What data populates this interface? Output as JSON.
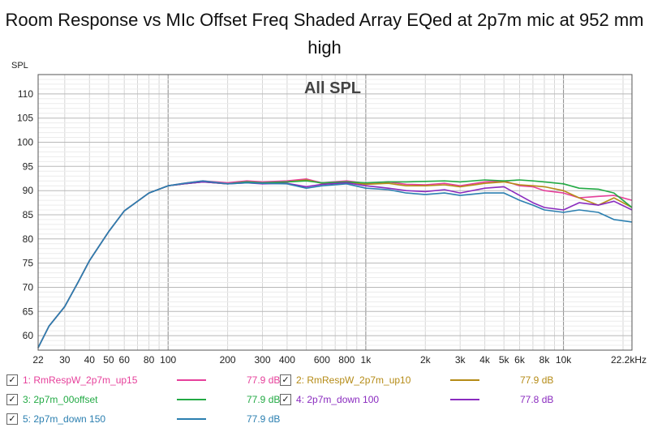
{
  "chart_data": {
    "type": "line",
    "title": "Room Response vs MIc Offset Freq Shaded Array EQed at 2p7m mic at 952 mm high",
    "plot_label": "All SPL",
    "ylabel": "SPL",
    "xscale": "log",
    "xlim": [
      22,
      22200
    ],
    "ylim": [
      57,
      114
    ],
    "grid": true,
    "y_ticks": [
      60,
      65,
      70,
      75,
      80,
      85,
      90,
      95,
      100,
      105,
      110
    ],
    "x_ticks": [
      {
        "value": 22,
        "label": "22"
      },
      {
        "value": 30,
        "label": "30"
      },
      {
        "value": 40,
        "label": "40"
      },
      {
        "value": 50,
        "label": "50"
      },
      {
        "value": 60,
        "label": "60"
      },
      {
        "value": 80,
        "label": "80"
      },
      {
        "value": 100,
        "label": "100"
      },
      {
        "value": 200,
        "label": "200"
      },
      {
        "value": 300,
        "label": "300"
      },
      {
        "value": 400,
        "label": "400"
      },
      {
        "value": 600,
        "label": "600"
      },
      {
        "value": 800,
        "label": "800"
      },
      {
        "value": 1000,
        "label": "1k"
      },
      {
        "value": 2000,
        "label": "2k"
      },
      {
        "value": 3000,
        "label": "3k"
      },
      {
        "value": 4000,
        "label": "4k"
      },
      {
        "value": 5000,
        "label": "5k"
      },
      {
        "value": 6000,
        "label": "6k"
      },
      {
        "value": 8000,
        "label": "8k"
      },
      {
        "value": 10000,
        "label": "10k"
      },
      {
        "value": 22200,
        "label": "22.2kHz"
      }
    ],
    "x": [
      22,
      25,
      30,
      35,
      40,
      50,
      60,
      80,
      100,
      120,
      150,
      200,
      250,
      300,
      400,
      500,
      600,
      800,
      1000,
      1300,
      1600,
      2000,
      2500,
      3000,
      4000,
      5000,
      6000,
      7000,
      8000,
      10000,
      12000,
      15000,
      18000,
      22200
    ],
    "series": [
      {
        "name": "1: RmRespW_2p7m_up15",
        "color": "#e6409b",
        "level": "77.9 dB",
        "values": [
          57.5,
          62,
          66,
          71,
          75.5,
          81.5,
          85.8,
          89.5,
          91.0,
          91.5,
          92.0,
          91.6,
          92.0,
          91.8,
          92.0,
          92.4,
          91.6,
          92.0,
          91.5,
          91.8,
          91.3,
          91.2,
          91.5,
          91.0,
          91.8,
          92.0,
          91.0,
          90.8,
          90.0,
          89.5,
          88.5,
          88.8,
          89.0,
          88.0
        ]
      },
      {
        "name": "2: RmRespW_2p7m_up10",
        "color": "#b58b16",
        "level": "77.9 dB",
        "values": [
          57.5,
          62,
          66,
          71,
          75.5,
          81.5,
          85.8,
          89.5,
          91.0,
          91.4,
          91.8,
          91.4,
          91.8,
          91.5,
          91.8,
          92.2,
          91.5,
          91.8,
          91.3,
          91.5,
          91.0,
          91.0,
          91.2,
          90.8,
          91.5,
          91.8,
          91.2,
          91.0,
          90.8,
          90.0,
          88.5,
          87.0,
          88.5,
          86.5
        ]
      },
      {
        "name": "3: 2p7m_00offset",
        "color": "#22aa44",
        "level": "77.9 dB",
        "values": [
          57.5,
          62,
          66,
          71,
          75.5,
          81.5,
          85.8,
          89.5,
          91.0,
          91.4,
          91.8,
          91.4,
          91.8,
          91.6,
          91.8,
          92.0,
          91.6,
          91.8,
          91.6,
          91.8,
          91.8,
          91.9,
          92.0,
          91.8,
          92.2,
          92.0,
          92.2,
          92.0,
          91.8,
          91.4,
          90.5,
          90.3,
          89.5,
          86.5
        ]
      },
      {
        "name": "4: 2p7m_down 100",
        "color": "#8a2bbf",
        "level": "77.8 dB",
        "values": [
          57.5,
          62,
          66,
          71,
          75.5,
          81.5,
          85.8,
          89.5,
          91.0,
          91.4,
          91.8,
          91.4,
          91.6,
          91.4,
          91.5,
          90.8,
          91.3,
          91.6,
          91.0,
          90.5,
          90.0,
          89.8,
          90.2,
          89.5,
          90.5,
          90.8,
          89.0,
          87.5,
          86.5,
          86.0,
          87.5,
          87.0,
          87.8,
          86.0
        ]
      },
      {
        "name": "5: 2p7m_down 150",
        "color": "#2b7fb0",
        "level": "77.9 dB",
        "values": [
          57.5,
          62,
          66,
          71,
          75.5,
          81.5,
          85.8,
          89.5,
          91.0,
          91.5,
          92.0,
          91.4,
          91.6,
          91.5,
          91.4,
          90.5,
          91.0,
          91.4,
          90.5,
          90.2,
          89.5,
          89.2,
          89.5,
          89.0,
          89.5,
          89.5,
          88.0,
          87.0,
          86.0,
          85.5,
          86.0,
          85.5,
          84.0,
          83.5
        ]
      }
    ]
  }
}
